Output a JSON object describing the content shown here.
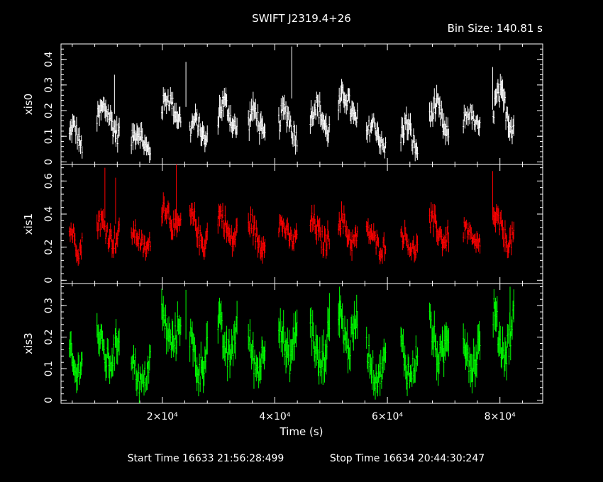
{
  "title": "SWIFT J2319.4+26",
  "bin_size_label": "Bin Size: 140.81 s",
  "xlabel": "Time (s)",
  "start_time": "Start Time 16633 21:56:28:499",
  "stop_time": "Stop Time 16634 20:44:30:247",
  "x_tick_labels": [
    "2×10⁴",
    "4×10⁴",
    "6×10⁴",
    "8×10⁴"
  ],
  "colors": {
    "background": "#000000",
    "axes": "#ffffff",
    "xis0": "#ffffff",
    "xis1": "#ff0000",
    "xis3": "#00ff00"
  },
  "chart_data": {
    "type": "scatter",
    "xlim": [
      2000,
      87600
    ],
    "x_ticks": [
      20000,
      40000,
      60000,
      80000
    ],
    "legend": "none",
    "grid": false,
    "panels": [
      {
        "name": "xis0",
        "ylabel": "xis0",
        "ylim": [
          -0.01,
          0.46
        ],
        "y_ticks": [
          0,
          0.1,
          0.2,
          0.3,
          0.4
        ],
        "y_tick_labels": [
          "0",
          "0.1",
          "0.2",
          "0.3",
          "0.4"
        ],
        "color": "#ffffff",
        "segments": [
          {
            "x_start": 3500,
            "x_end": 5800,
            "level": 0.1,
            "amp": 0.04,
            "scatter": 0.035
          },
          {
            "x_start": 8400,
            "x_end": 12400,
            "level": 0.16,
            "amp": 0.05,
            "scatter": 0.04
          },
          {
            "x_start": 14500,
            "x_end": 17900,
            "level": 0.08,
            "amp": 0.04,
            "scatter": 0.035
          },
          {
            "x_start": 19900,
            "x_end": 23300,
            "level": 0.21,
            "amp": 0.04,
            "scatter": 0.035
          },
          {
            "x_start": 24900,
            "x_end": 28100,
            "level": 0.12,
            "amp": 0.04,
            "scatter": 0.035
          },
          {
            "x_start": 29900,
            "x_end": 33300,
            "level": 0.18,
            "amp": 0.05,
            "scatter": 0.04
          },
          {
            "x_start": 35300,
            "x_end": 38300,
            "level": 0.15,
            "amp": 0.05,
            "scatter": 0.04
          },
          {
            "x_start": 40700,
            "x_end": 44000,
            "level": 0.15,
            "amp": 0.05,
            "scatter": 0.04
          },
          {
            "x_start": 46300,
            "x_end": 49700,
            "level": 0.17,
            "amp": 0.05,
            "scatter": 0.04
          },
          {
            "x_start": 51300,
            "x_end": 54700,
            "level": 0.21,
            "amp": 0.05,
            "scatter": 0.04
          },
          {
            "x_start": 56300,
            "x_end": 59800,
            "level": 0.1,
            "amp": 0.05,
            "scatter": 0.035
          },
          {
            "x_start": 62400,
            "x_end": 65400,
            "level": 0.1,
            "amp": 0.05,
            "scatter": 0.04
          },
          {
            "x_start": 67500,
            "x_end": 71000,
            "level": 0.16,
            "amp": 0.06,
            "scatter": 0.04
          },
          {
            "x_start": 73500,
            "x_end": 76500,
            "level": 0.16,
            "amp": 0.03,
            "scatter": 0.03
          },
          {
            "x_start": 78800,
            "x_end": 82500,
            "level": 0.2,
            "amp": 0.06,
            "scatter": 0.045
          }
        ],
        "spikes": [
          {
            "x": 11500,
            "y": 0.34
          },
          {
            "x": 24200,
            "y": 0.39
          },
          {
            "x": 43000,
            "y": 0.45
          },
          {
            "x": 78700,
            "y": 0.37
          }
        ]
      },
      {
        "name": "xis1",
        "ylabel": "xis1",
        "ylim": [
          -0.02,
          0.7
        ],
        "y_ticks": [
          0,
          0.2,
          0.4,
          0.6
        ],
        "y_tick_labels": [
          "0",
          "0.2",
          "0.4",
          "0.6"
        ],
        "color": "#ff0000",
        "segments": [
          {
            "x_start": 3500,
            "x_end": 5800,
            "level": 0.24,
            "amp": 0.06,
            "scatter": 0.05
          },
          {
            "x_start": 8400,
            "x_end": 12400,
            "level": 0.3,
            "amp": 0.06,
            "scatter": 0.06
          },
          {
            "x_start": 14500,
            "x_end": 17900,
            "level": 0.24,
            "amp": 0.05,
            "scatter": 0.05
          },
          {
            "x_start": 19900,
            "x_end": 23300,
            "level": 0.38,
            "amp": 0.07,
            "scatter": 0.06
          },
          {
            "x_start": 24900,
            "x_end": 28100,
            "level": 0.3,
            "amp": 0.08,
            "scatter": 0.06
          },
          {
            "x_start": 29900,
            "x_end": 33300,
            "level": 0.32,
            "amp": 0.08,
            "scatter": 0.06
          },
          {
            "x_start": 35300,
            "x_end": 38300,
            "level": 0.28,
            "amp": 0.07,
            "scatter": 0.06
          },
          {
            "x_start": 40700,
            "x_end": 44000,
            "level": 0.29,
            "amp": 0.05,
            "scatter": 0.05
          },
          {
            "x_start": 46300,
            "x_end": 49700,
            "level": 0.29,
            "amp": 0.06,
            "scatter": 0.06
          },
          {
            "x_start": 51300,
            "x_end": 54700,
            "level": 0.3,
            "amp": 0.07,
            "scatter": 0.06
          },
          {
            "x_start": 56300,
            "x_end": 59800,
            "level": 0.24,
            "amp": 0.05,
            "scatter": 0.05
          },
          {
            "x_start": 62400,
            "x_end": 65400,
            "level": 0.23,
            "amp": 0.05,
            "scatter": 0.05
          },
          {
            "x_start": 67500,
            "x_end": 71000,
            "level": 0.3,
            "amp": 0.06,
            "scatter": 0.06
          },
          {
            "x_start": 73500,
            "x_end": 76500,
            "level": 0.26,
            "amp": 0.05,
            "scatter": 0.05
          },
          {
            "x_start": 78800,
            "x_end": 82500,
            "level": 0.3,
            "amp": 0.07,
            "scatter": 0.06
          }
        ],
        "spikes": [
          {
            "x": 9800,
            "y": 0.68
          },
          {
            "x": 11700,
            "y": 0.62
          },
          {
            "x": 22500,
            "y": 0.7
          },
          {
            "x": 78700,
            "y": 0.66
          }
        ]
      },
      {
        "name": "xis3",
        "ylabel": "xis3",
        "ylim": [
          -0.01,
          0.37
        ],
        "y_ticks": [
          0,
          0.1,
          0.2,
          0.3
        ],
        "y_tick_labels": [
          "0",
          "0.1",
          "0.2",
          "0.3"
        ],
        "color": "#00ff00",
        "segments": [
          {
            "x_start": 3500,
            "x_end": 5800,
            "level": 0.12,
            "amp": 0.04,
            "scatter": 0.04
          },
          {
            "x_start": 8400,
            "x_end": 12400,
            "level": 0.17,
            "amp": 0.05,
            "scatter": 0.045
          },
          {
            "x_start": 14500,
            "x_end": 17900,
            "level": 0.1,
            "amp": 0.05,
            "scatter": 0.04
          },
          {
            "x_start": 19900,
            "x_end": 23300,
            "level": 0.23,
            "amp": 0.05,
            "scatter": 0.045
          },
          {
            "x_start": 24900,
            "x_end": 28100,
            "level": 0.15,
            "amp": 0.06,
            "scatter": 0.05
          },
          {
            "x_start": 29900,
            "x_end": 33300,
            "level": 0.2,
            "amp": 0.06,
            "scatter": 0.05
          },
          {
            "x_start": 35300,
            "x_end": 38300,
            "level": 0.15,
            "amp": 0.05,
            "scatter": 0.045
          },
          {
            "x_start": 40700,
            "x_end": 44000,
            "level": 0.2,
            "amp": 0.07,
            "scatter": 0.05
          },
          {
            "x_start": 46300,
            "x_end": 49700,
            "level": 0.18,
            "amp": 0.07,
            "scatter": 0.05
          },
          {
            "x_start": 51300,
            "x_end": 54700,
            "level": 0.24,
            "amp": 0.07,
            "scatter": 0.05
          },
          {
            "x_start": 56300,
            "x_end": 59800,
            "level": 0.12,
            "amp": 0.05,
            "scatter": 0.04
          },
          {
            "x_start": 62400,
            "x_end": 65400,
            "level": 0.13,
            "amp": 0.05,
            "scatter": 0.045
          },
          {
            "x_start": 67500,
            "x_end": 71000,
            "level": 0.19,
            "amp": 0.06,
            "scatter": 0.05
          },
          {
            "x_start": 73500,
            "x_end": 76500,
            "level": 0.16,
            "amp": 0.05,
            "scatter": 0.05
          },
          {
            "x_start": 78800,
            "x_end": 82500,
            "level": 0.22,
            "amp": 0.07,
            "scatter": 0.05
          }
        ],
        "spikes": [
          {
            "x": 24200,
            "y": 0.35
          },
          {
            "x": 49700,
            "y": 0.34
          },
          {
            "x": 51500,
            "y": 0.36
          },
          {
            "x": 81800,
            "y": 0.36
          }
        ]
      }
    ]
  }
}
